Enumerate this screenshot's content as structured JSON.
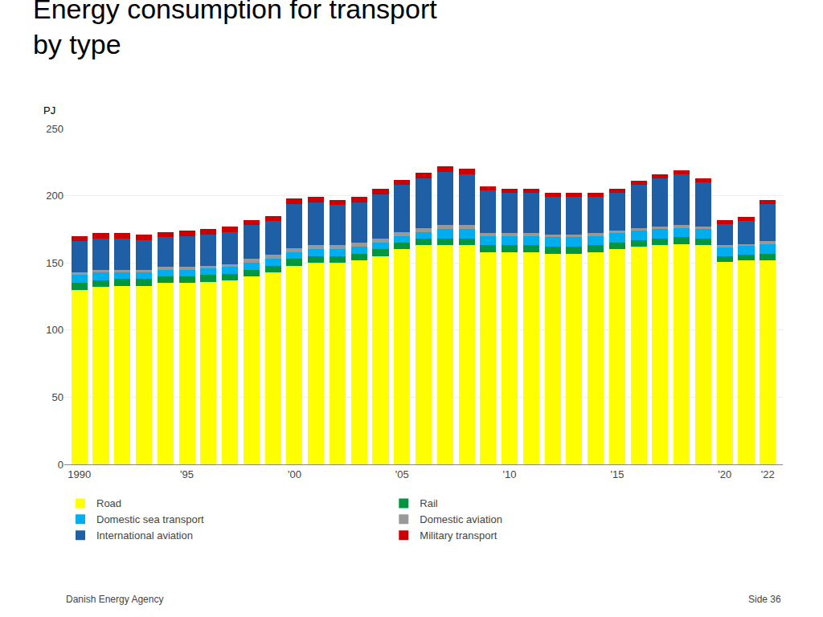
{
  "chart_data": {
    "type": "bar",
    "stacked": true,
    "title": "Energy consumption for transport",
    "subtitle": "by type",
    "ylabel": "PJ",
    "x": [
      1990,
      1991,
      1992,
      1993,
      1994,
      1995,
      1996,
      1997,
      1998,
      1999,
      2000,
      2001,
      2002,
      2003,
      2004,
      2005,
      2006,
      2007,
      2008,
      2009,
      2010,
      2011,
      2012,
      2013,
      2014,
      2015,
      2016,
      2017,
      2018,
      2019,
      2020,
      2021,
      2022
    ],
    "series": [
      {
        "name": "Road",
        "color": "#ffff00",
        "values": [
          130,
          132,
          133,
          133,
          135,
          135,
          136,
          137,
          140,
          143,
          148,
          150,
          150,
          152,
          155,
          160,
          163,
          163,
          163,
          158,
          158,
          158,
          157,
          157,
          158,
          160,
          162,
          163,
          164,
          163,
          151,
          152,
          152
        ]
      },
      {
        "name": "Rail",
        "color": "#009640",
        "values": [
          5,
          5,
          5,
          5,
          5,
          5,
          5,
          5,
          5,
          5,
          5,
          5,
          5,
          5,
          5,
          5,
          5,
          5,
          5,
          5,
          5,
          5,
          5,
          5,
          5,
          5,
          5,
          5,
          5,
          5,
          4,
          4,
          5
        ]
      },
      {
        "name": "Domestic sea transport",
        "color": "#00aeef",
        "values": [
          6,
          6,
          5,
          5,
          5,
          5,
          5,
          5,
          5,
          5,
          5,
          5,
          5,
          5,
          5,
          5,
          5,
          7,
          7,
          7,
          7,
          7,
          7,
          7,
          7,
          7,
          7,
          7,
          7,
          7,
          7,
          7,
          7
        ]
      },
      {
        "name": "Domestic aviation",
        "color": "#999999",
        "values": [
          2,
          2,
          2,
          2,
          2,
          2,
          2,
          2,
          3,
          3,
          3,
          3,
          3,
          3,
          3,
          3,
          3,
          3,
          3,
          2,
          2,
          2,
          2,
          2,
          2,
          2,
          2,
          2,
          2,
          2,
          1,
          1,
          2
        ]
      },
      {
        "name": "International aviation",
        "color": "#1f5fa6",
        "values": [
          23,
          23,
          23,
          22,
          22,
          23,
          23,
          24,
          25,
          25,
          33,
          32,
          30,
          30,
          33,
          35,
          37,
          40,
          38,
          32,
          30,
          30,
          28,
          28,
          27,
          28,
          32,
          36,
          38,
          33,
          16,
          17,
          28
        ]
      },
      {
        "name": "Military transport",
        "color": "#cc0000",
        "values": [
          4,
          4,
          4,
          4,
          4,
          4,
          4,
          4,
          4,
          4,
          4,
          4,
          4,
          4,
          4,
          4,
          4,
          4,
          4,
          3,
          3,
          3,
          3,
          3,
          3,
          3,
          3,
          3,
          3,
          3,
          3,
          3,
          3
        ]
      }
    ],
    "xlim": [
      1989.3,
      2022.7
    ],
    "xticks": [
      1990,
      {
        "value": 1995,
        "label": "'95"
      },
      {
        "value": 2000,
        "label": "'00"
      },
      {
        "value": 2005,
        "label": "'05"
      },
      {
        "value": 2010,
        "label": "'10"
      },
      {
        "value": 2015,
        "label": "'15"
      },
      {
        "value": 2020,
        "label": "'20"
      },
      {
        "value": 2022,
        "label": "'22"
      }
    ],
    "ylim": [
      0,
      250
    ],
    "yticks": [
      0,
      50,
      100,
      150,
      200,
      250
    ],
    "grid": true,
    "legend": "bottom",
    "annotations": [
      "Danish Energy Agency",
      "Side 36"
    ]
  }
}
